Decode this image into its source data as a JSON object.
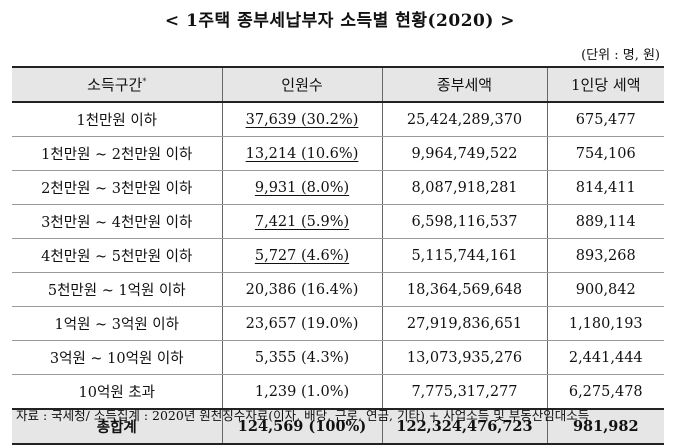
{
  "title": "< 1주택 종부세납부자 소득별 현황(2020) >",
  "unit": "(단위 : 명, 원)",
  "table": {
    "headers": {
      "col1": "소득구간",
      "col1_mark": "*",
      "col2": "인원수",
      "col3": "종부세액",
      "col4": "1인당 세액"
    },
    "rows": [
      {
        "range": "1천만원 이하",
        "count": "37,639 (30.2%)",
        "tax": "25,424,289,370",
        "per_person": "675,477",
        "underlined": true
      },
      {
        "range": "1천만원 ~ 2천만원 이하",
        "count": "13,214 (10.6%)",
        "tax": "9,964,749,522",
        "per_person": "754,106",
        "underlined": true
      },
      {
        "range": "2천만원 ~ 3천만원 이하",
        "count": "9,931 (8.0%)",
        "tax": "8,087,918,281",
        "per_person": "814,411",
        "underlined": true
      },
      {
        "range": "3천만원 ~ 4천만원 이하",
        "count": "7,421 (5.9%)",
        "tax": "6,598,116,537",
        "per_person": "889,114",
        "underlined": true
      },
      {
        "range": "4천만원 ~ 5천만원 이하",
        "count": "5,727 (4.6%)",
        "tax": "5,115,744,161",
        "per_person": "893,268",
        "underlined": true
      },
      {
        "range": "5천만원 ~ 1억원 이하",
        "count": "20,386 (16.4%)",
        "tax": "18,364,569,648",
        "per_person": "900,842",
        "underlined": false
      },
      {
        "range": "1억원 ~ 3억원 이하",
        "count": "23,657 (19.0%)",
        "tax": "27,919,836,651",
        "per_person": "1,180,193",
        "underlined": false
      },
      {
        "range": "3억원 ~ 10억원 이하",
        "count": "5,355 (4.3%)",
        "tax": "13,073,935,276",
        "per_person": "2,441,444",
        "underlined": false
      },
      {
        "range": "10억원 초과",
        "count": "1,239 (1.0%)",
        "tax": "7,775,317,277",
        "per_person": "6,275,478",
        "underlined": false
      }
    ],
    "total": {
      "label": "총합계",
      "count": "124,569 (100%)",
      "tax": "122,324,476,723",
      "per_person": "981,982"
    }
  },
  "source": "자료 : 국세청/ 소득집계 : 2020년 원천징수자료(이자, 배당, 근로, 연금, 기타) + 사업소득 및 부동산임대소득"
}
